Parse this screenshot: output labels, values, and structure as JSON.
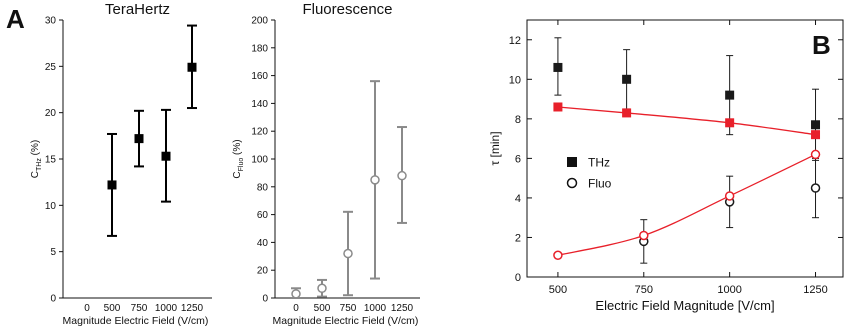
{
  "panel_labels": {
    "a": "A",
    "b": "B"
  },
  "chart_data": [
    {
      "id": "terahertz",
      "type": "scatter",
      "title": "TeraHertz",
      "xlabel": "Magnitude Electric Field (V/cm)",
      "ylabel_main": "C",
      "ylabel_sub": "THz",
      "ylabel_unit": " (%)",
      "x_categories": [
        "0",
        "500",
        "750",
        "1000",
        "1250"
      ],
      "ylim": [
        0,
        30
      ],
      "yticks": [
        0,
        5,
        10,
        15,
        20,
        25,
        30
      ],
      "marker": "filled-square",
      "color": "#000000",
      "series": [
        {
          "values": [
            {
              "x": "500",
              "y": 12.2,
              "err_low": 6.7,
              "err_high": 17.7
            },
            {
              "x": "750",
              "y": 17.2,
              "err_low": 14.2,
              "err_high": 20.2
            },
            {
              "x": "1000",
              "y": 15.3,
              "err_low": 10.4,
              "err_high": 20.3
            },
            {
              "x": "1250",
              "y": 24.9,
              "err_low": 20.5,
              "err_high": 29.4
            }
          ]
        }
      ]
    },
    {
      "id": "fluorescence",
      "type": "scatter",
      "title": "Fluorescence",
      "xlabel": "Magnitude Electric Field (V/cm)",
      "ylabel_main": "C",
      "ylabel_sub": "Fluo",
      "ylabel_unit": " (%)",
      "x_categories": [
        "0",
        "500",
        "750",
        "1000",
        "1250"
      ],
      "ylim": [
        0,
        200
      ],
      "yticks": [
        0,
        20,
        40,
        60,
        80,
        100,
        120,
        140,
        160,
        180,
        200
      ],
      "marker": "open-circle",
      "color": "#8a8a8a",
      "series": [
        {
          "values": [
            {
              "x": "0",
              "y": 3,
              "err_low": 0,
              "err_high": 7
            },
            {
              "x": "500",
              "y": 7,
              "err_low": 1,
              "err_high": 13
            },
            {
              "x": "750",
              "y": 32,
              "err_low": 2,
              "err_high": 62
            },
            {
              "x": "1000",
              "y": 85,
              "err_low": 14,
              "err_high": 156
            },
            {
              "x": "1250",
              "y": 88,
              "err_low": 54,
              "err_high": 123
            }
          ]
        }
      ]
    },
    {
      "id": "tau",
      "type": "scatter",
      "xlabel": "Electric Field Magnitude [V/cm]",
      "ylabel": "τ [min]",
      "xlim": [
        410,
        1330
      ],
      "xticks": [
        500,
        750,
        1000,
        1250
      ],
      "ylim": [
        0,
        13
      ],
      "yticks": [
        0,
        2,
        4,
        6,
        8,
        10,
        12
      ],
      "legend": {
        "position": "middle-left",
        "entries": [
          "THz",
          "Fluo"
        ]
      },
      "fit_color": "#e8202a",
      "series": [
        {
          "name": "THz",
          "marker": "filled-square",
          "color": "#1a1a1a",
          "values": [
            {
              "x": 500,
              "y": 10.6,
              "err_low": 9.2,
              "err_high": 12.1
            },
            {
              "x": 700,
              "y": 10.0,
              "err_low": 8.5,
              "err_high": 11.5
            },
            {
              "x": 1000,
              "y": 9.2,
              "err_low": 7.2,
              "err_high": 11.2
            },
            {
              "x": 1250,
              "y": 7.7,
              "err_low": 5.9,
              "err_high": 9.5
            }
          ]
        },
        {
          "name": "Fluo",
          "marker": "open-circle",
          "color": "#1a1a1a",
          "values": [
            {
              "x": 750,
              "y": 1.8,
              "err_low": 0.7,
              "err_high": 2.9
            },
            {
              "x": 1000,
              "y": 3.8,
              "err_low": 2.5,
              "err_high": 5.1
            },
            {
              "x": 1250,
              "y": 4.5,
              "err_low": 3.0,
              "err_high": 6.0
            }
          ]
        },
        {
          "name": "THz fit",
          "marker": "filled-square",
          "color": "#e8202a",
          "line": true,
          "values": [
            {
              "x": 500,
              "y": 8.6
            },
            {
              "x": 700,
              "y": 8.3
            },
            {
              "x": 1000,
              "y": 7.8
            },
            {
              "x": 1250,
              "y": 7.2
            }
          ]
        },
        {
          "name": "Fluo fit",
          "marker": "open-circle",
          "color": "#e8202a",
          "line": true,
          "values": [
            {
              "x": 500,
              "y": 1.1
            },
            {
              "x": 750,
              "y": 2.1
            },
            {
              "x": 1000,
              "y": 4.1
            },
            {
              "x": 1250,
              "y": 6.2
            }
          ]
        }
      ]
    }
  ]
}
